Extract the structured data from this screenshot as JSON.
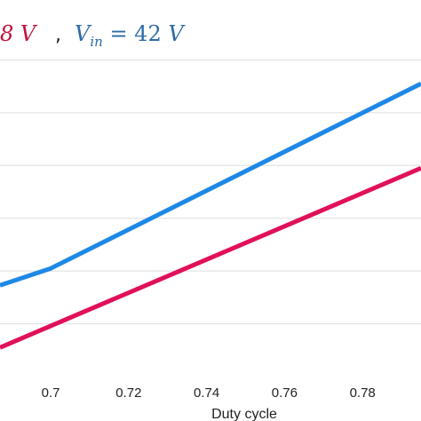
{
  "chart_data": {
    "type": "line",
    "title": "",
    "xlabel": "Duty cycle",
    "ylabel": "",
    "xlim": [
      0.687,
      0.795
    ],
    "ylim": [
      0,
      7
    ],
    "grid": "horizontal",
    "xticks": [
      0.7,
      0.72,
      0.74,
      0.76,
      0.78
    ],
    "xtick_labels": [
      "0.7",
      "0.72",
      "0.74",
      "0.76",
      "0.78"
    ],
    "yticks": [
      1,
      2,
      3,
      4,
      5,
      6
    ],
    "legend": {
      "placement": "top",
      "entries": [
        {
          "text": "8 V",
          "color": "#c0143c"
        },
        {
          "separator": ","
        },
        {
          "text": "V_in = 42 V",
          "color": "#2e6aa8"
        }
      ]
    },
    "series": [
      {
        "color": "#1e88e5",
        "x": [
          0.687,
          0.7,
          0.795
        ],
        "y": [
          1.73,
          2.05,
          5.55
        ]
      },
      {
        "color": "#e0105a",
        "x": [
          0.687,
          0.795
        ],
        "y": [
          0.55,
          3.95
        ]
      }
    ]
  }
}
